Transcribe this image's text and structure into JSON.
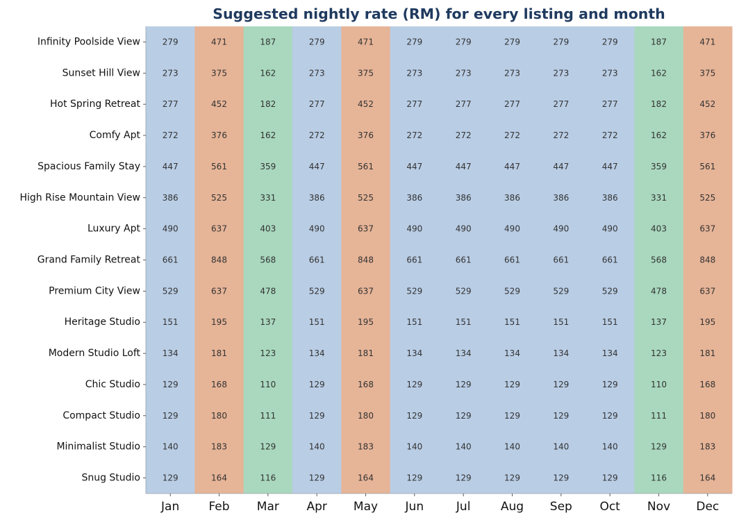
{
  "chart_data": {
    "type": "heatmap",
    "title": "Suggested nightly rate (RM) for every listing and month",
    "columns": [
      "Jan",
      "Feb",
      "Mar",
      "Apr",
      "May",
      "Jun",
      "Jul",
      "Aug",
      "Sep",
      "Oct",
      "Nov",
      "Dec"
    ],
    "column_colors": [
      "#b9cde5",
      "#e6b497",
      "#a9d8be",
      "#b9cde5",
      "#e6b497",
      "#b9cde5",
      "#b9cde5",
      "#b9cde5",
      "#b9cde5",
      "#b9cde5",
      "#a9d8be",
      "#e6b497"
    ],
    "rows": [
      {
        "name": "Infinity Poolside View",
        "values": [
          279,
          471,
          187,
          279,
          471,
          279,
          279,
          279,
          279,
          279,
          187,
          471
        ]
      },
      {
        "name": "Sunset Hill View",
        "values": [
          273,
          375,
          162,
          273,
          375,
          273,
          273,
          273,
          273,
          273,
          162,
          375
        ]
      },
      {
        "name": "Hot Spring Retreat",
        "values": [
          277,
          452,
          182,
          277,
          452,
          277,
          277,
          277,
          277,
          277,
          182,
          452
        ]
      },
      {
        "name": "Comfy Apt",
        "values": [
          272,
          376,
          162,
          272,
          376,
          272,
          272,
          272,
          272,
          272,
          162,
          376
        ]
      },
      {
        "name": "Spacious Family Stay",
        "values": [
          447,
          561,
          359,
          447,
          561,
          447,
          447,
          447,
          447,
          447,
          359,
          561
        ]
      },
      {
        "name": "High Rise Mountain View",
        "values": [
          386,
          525,
          331,
          386,
          525,
          386,
          386,
          386,
          386,
          386,
          331,
          525
        ]
      },
      {
        "name": "Luxury Apt",
        "values": [
          490,
          637,
          403,
          490,
          637,
          490,
          490,
          490,
          490,
          490,
          403,
          637
        ]
      },
      {
        "name": "Grand Family Retreat",
        "values": [
          661,
          848,
          568,
          661,
          848,
          661,
          661,
          661,
          661,
          661,
          568,
          848
        ]
      },
      {
        "name": "Premium City View",
        "values": [
          529,
          637,
          478,
          529,
          637,
          529,
          529,
          529,
          529,
          529,
          478,
          637
        ]
      },
      {
        "name": "Heritage Studio",
        "values": [
          151,
          195,
          137,
          151,
          195,
          151,
          151,
          151,
          151,
          151,
          137,
          195
        ]
      },
      {
        "name": "Modern Studio Loft",
        "values": [
          134,
          181,
          123,
          134,
          181,
          134,
          134,
          134,
          134,
          134,
          123,
          181
        ]
      },
      {
        "name": "Chic Studio",
        "values": [
          129,
          168,
          110,
          129,
          168,
          129,
          129,
          129,
          129,
          129,
          110,
          168
        ]
      },
      {
        "name": "Compact Studio",
        "values": [
          129,
          180,
          111,
          129,
          180,
          129,
          129,
          129,
          129,
          129,
          111,
          180
        ]
      },
      {
        "name": "Minimalist Studio",
        "values": [
          140,
          183,
          129,
          140,
          183,
          140,
          140,
          140,
          140,
          140,
          129,
          183
        ]
      },
      {
        "name": "Snug Studio",
        "values": [
          129,
          164,
          116,
          129,
          164,
          129,
          129,
          129,
          129,
          129,
          116,
          164
        ]
      }
    ]
  }
}
